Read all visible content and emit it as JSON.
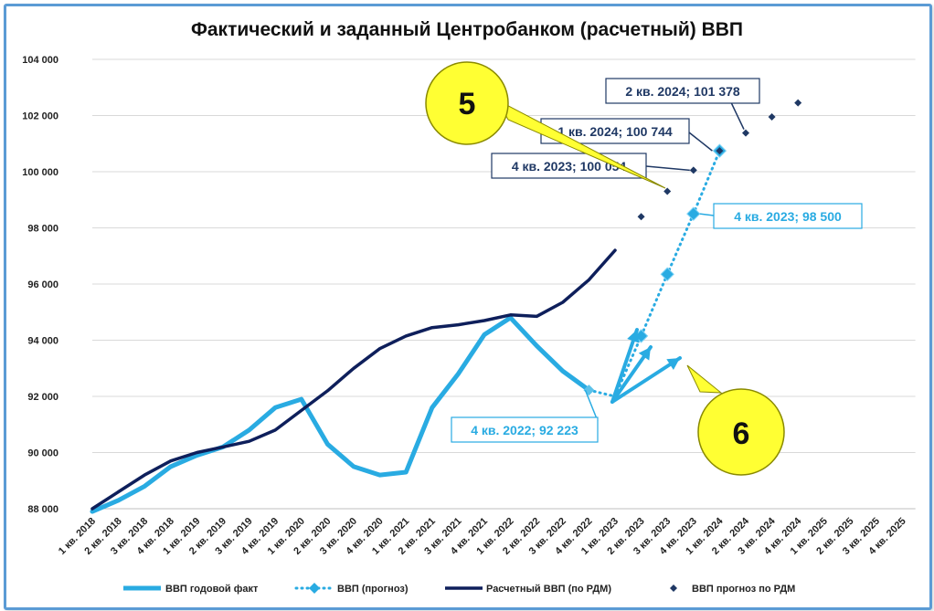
{
  "chart_data": {
    "type": "line",
    "title": "Фактический и заданный Центробанком (расчетный) ВВП",
    "ylim": [
      88000,
      104000
    ],
    "yticks": [
      "88 000",
      "90 000",
      "92 000",
      "94 000",
      "96 000",
      "98 000",
      "100 000",
      "102 000",
      "104 000"
    ],
    "yticks_values": [
      88000,
      90000,
      92000,
      94000,
      96000,
      98000,
      100000,
      102000,
      104000
    ],
    "categories": [
      "1 кв. 2018",
      "2 кв. 2018",
      "3 кв. 2018",
      "4 кв. 2018",
      "1 кв. 2019",
      "2 кв. 2019",
      "3 кв. 2019",
      "4 кв. 2019",
      "1 кв. 2020",
      "2 кв. 2020",
      "3 кв. 2020",
      "4 кв. 2020",
      "1 кв. 2021",
      "2 кв. 2021",
      "3 кв. 2021",
      "4 кв. 2021",
      "1 кв. 2022",
      "2 кв. 2022",
      "3 кв. 2022",
      "4 кв. 2022",
      "1 кв. 2023",
      "2 кв. 2023",
      "3 кв. 2023",
      "4 кв. 2023",
      "1 кв. 2024",
      "2 кв. 2024",
      "3 кв. 2024",
      "4 кв. 2024",
      "1 кв. 2025",
      "2 кв. 2025",
      "3 кв. 2025",
      "4 кв. 2025"
    ],
    "series": [
      {
        "name": "ВВП годовой факт",
        "color": "#29abe2",
        "style": "solid",
        "values": [
          87900,
          88300,
          88800,
          89500,
          89900,
          90200,
          90800,
          91600,
          91900,
          90300,
          89500,
          89200,
          89300,
          91600,
          92800,
          94200,
          94800,
          93800,
          92900,
          92223,
          null,
          null,
          null,
          null,
          null,
          null,
          null,
          null,
          null,
          null,
          null,
          null
        ]
      },
      {
        "name": "ВВП (прогноз)",
        "color": "#29abe2",
        "style": "dotted-diamond",
        "values": [
          null,
          null,
          null,
          null,
          null,
          null,
          null,
          null,
          null,
          null,
          null,
          null,
          null,
          null,
          null,
          null,
          null,
          null,
          null,
          92223,
          92000,
          94150,
          96350,
          98500,
          100744,
          null,
          null,
          null,
          null,
          null,
          null,
          null
        ]
      },
      {
        "name": "Расчетный ВВП (по РДМ)",
        "color": "#0e1f5b",
        "style": "solid",
        "values": [
          88000,
          88600,
          89200,
          89700,
          90000,
          90200,
          90400,
          90800,
          91500,
          92200,
          93000,
          93700,
          94150,
          94450,
          94550,
          94700,
          94900,
          94850,
          95350,
          96150,
          97200,
          null,
          null,
          null,
          null,
          null,
          null,
          null,
          null,
          null,
          null,
          null
        ]
      },
      {
        "name": "ВВП прогноз по РДМ",
        "color": "#1f3864",
        "style": "dot",
        "values": [
          null,
          null,
          null,
          null,
          null,
          null,
          null,
          null,
          null,
          null,
          null,
          null,
          null,
          null,
          null,
          null,
          null,
          null,
          null,
          null,
          null,
          98400,
          99300,
          100054,
          100744,
          101378,
          101950,
          102450,
          null,
          null,
          null,
          null
        ]
      }
    ],
    "annotations": [
      {
        "text": "4 кв. 2022;  92 223",
        "color": "#29abe2"
      },
      {
        "text": "4 кв. 2023;  98 500",
        "color": "#29abe2"
      },
      {
        "text": "4 кв. 2023;  100 054",
        "color": "#1f3864"
      },
      {
        "text": "1 кв. 2024;  100 744",
        "color": "#1f3864"
      },
      {
        "text": "2 кв. 2024;  101 378",
        "color": "#1f3864"
      }
    ],
    "callouts": [
      {
        "text": "5",
        "color": "#ffff33"
      },
      {
        "text": "6",
        "color": "#ffff33"
      }
    ]
  }
}
